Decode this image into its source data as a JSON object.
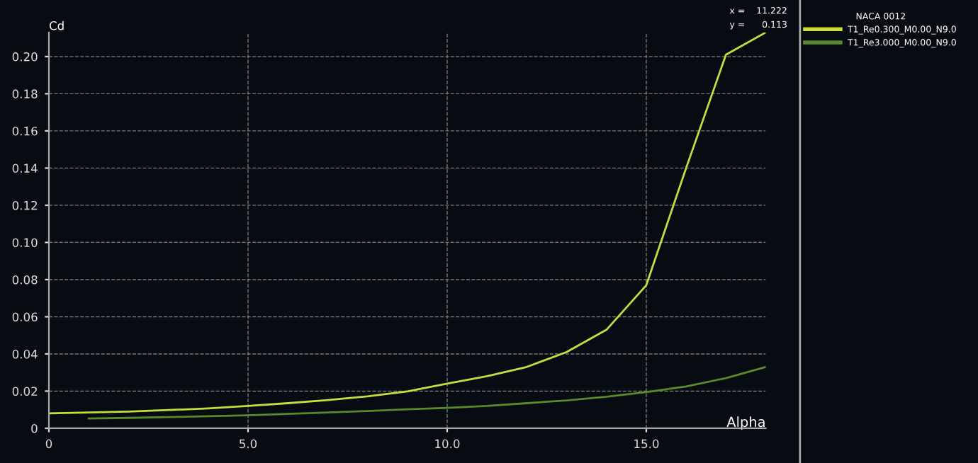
{
  "chart_data": {
    "type": "line",
    "xlabel": "Alpha",
    "ylabel": "Cd",
    "legend_title": "NACA 0012",
    "annotations": [
      "x =    11.222",
      "y =      0.113"
    ],
    "xlim": [
      0,
      18
    ],
    "ylim": [
      0,
      0.213
    ],
    "xticks": [
      0,
      {
        "value": 5,
        "label": "5.0"
      },
      {
        "value": 10,
        "label": "10.0"
      },
      {
        "value": 15,
        "label": "15.0"
      }
    ],
    "yticks": [
      0,
      0.02,
      0.04,
      0.06,
      0.08,
      {
        "value": 0.1,
        "label": "0.10"
      },
      0.12,
      0.14,
      0.16,
      0.18,
      {
        "value": 0.2,
        "label": "0.20"
      }
    ],
    "grid": true,
    "legend": "top right",
    "marker": "none",
    "line_style": "solid",
    "series": [
      {
        "name": "T1_Re0.300_M0.00_N9.0",
        "color": "#c8dc3c",
        "x": [
          0,
          1,
          2,
          3,
          4,
          5,
          6,
          7,
          8,
          9,
          10,
          11,
          12,
          13,
          14,
          15,
          16,
          17,
          18
        ],
        "values": [
          0.008,
          0.0085,
          0.009,
          0.0098,
          0.0107,
          0.012,
          0.0135,
          0.0152,
          0.0172,
          0.0198,
          0.024,
          0.028,
          0.033,
          0.041,
          0.053,
          0.077,
          0.14,
          0.201,
          0.213
        ]
      },
      {
        "name": "T1_Re3.000_M0.00_N9.0",
        "color": "#5a8a2a",
        "x": [
          1,
          2,
          3,
          4,
          5,
          6,
          7,
          8,
          9,
          10,
          11,
          12,
          13,
          14,
          15,
          16,
          17,
          18
        ],
        "values": [
          0.0053,
          0.0056,
          0.006,
          0.0065,
          0.007,
          0.0077,
          0.0085,
          0.0093,
          0.0102,
          0.011,
          0.012,
          0.0135,
          0.015,
          0.017,
          0.0195,
          0.0225,
          0.027,
          0.033
        ]
      }
    ]
  }
}
